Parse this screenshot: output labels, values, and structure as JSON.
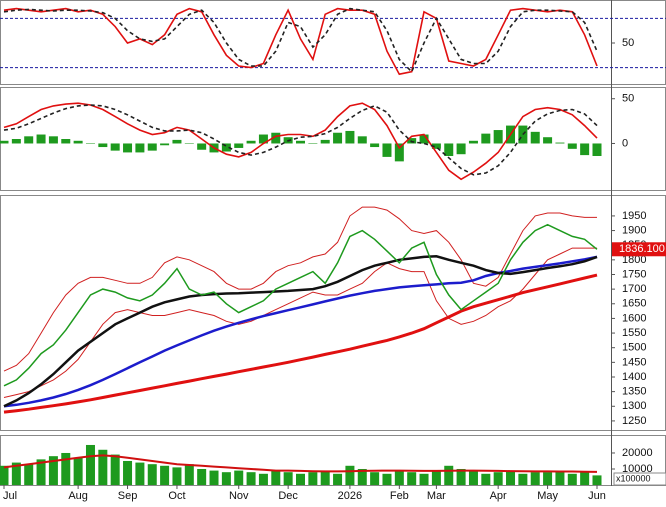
{
  "chart_data": [
    {
      "type": "line",
      "ylim": [
        0,
        100
      ],
      "yticks": [
        50
      ],
      "levels": [
        80,
        20
      ],
      "level_color": "#1a1aa0",
      "series": [
        {
          "color": "#e01010",
          "values": [
            90,
            92,
            90,
            88,
            90,
            92,
            88,
            90,
            85,
            70,
            50,
            55,
            48,
            60,
            85,
            92,
            88,
            60,
            35,
            22,
            20,
            25,
            60,
            90,
            55,
            30,
            85,
            92,
            90,
            90,
            85,
            40,
            12,
            15,
            88,
            80,
            28,
            25,
            22,
            30,
            60,
            90,
            92,
            90,
            88,
            90,
            88,
            60,
            22
          ]
        },
        {
          "color": "#222222",
          "dash": true,
          "values": [
            88,
            90,
            91,
            90,
            89,
            90,
            90,
            89,
            87,
            80,
            65,
            55,
            52,
            55,
            70,
            85,
            90,
            75,
            50,
            30,
            22,
            22,
            40,
            75,
            70,
            45,
            60,
            85,
            92,
            90,
            88,
            65,
            30,
            15,
            50,
            80,
            55,
            30,
            25,
            25,
            40,
            70,
            88,
            90,
            90,
            89,
            88,
            75,
            40
          ]
        }
      ]
    },
    {
      "type": "line",
      "ylim": [
        -52,
        62
      ],
      "yticks": [
        0,
        50
      ],
      "series": [
        {
          "kind": "bar",
          "color": "#1e9a1e",
          "values": [
            3,
            5,
            8,
            10,
            8,
            5,
            3,
            0,
            -4,
            -8,
            -10,
            -10,
            -8,
            -2,
            4,
            0,
            -7,
            -10,
            -9,
            -5,
            3,
            10,
            12,
            7,
            3,
            0,
            4,
            12,
            14,
            8,
            -4,
            -15,
            -20,
            6,
            10,
            -6,
            -14,
            -12,
            3,
            11,
            15,
            20,
            20,
            13,
            7,
            1,
            -6,
            -13,
            -14
          ]
        },
        {
          "color": "#e01010",
          "values": [
            18,
            22,
            30,
            38,
            42,
            44,
            45,
            43,
            38,
            30,
            22,
            15,
            10,
            12,
            18,
            15,
            5,
            -5,
            -12,
            -15,
            -10,
            0,
            8,
            10,
            10,
            8,
            15,
            30,
            42,
            45,
            38,
            20,
            -5,
            8,
            10,
            -10,
            -30,
            -40,
            -32,
            -22,
            -10,
            10,
            30,
            38,
            40,
            38,
            32,
            20,
            6
          ]
        },
        {
          "color": "#222222",
          "dash": true,
          "values": [
            15,
            17,
            22,
            28,
            34,
            39,
            42,
            43,
            42,
            38,
            32,
            25,
            18,
            14,
            14,
            15,
            12,
            5,
            -3,
            -10,
            -13,
            -10,
            -4,
            3,
            7,
            8,
            11,
            18,
            28,
            37,
            42,
            35,
            15,
            2,
            0,
            -4,
            -16,
            -28,
            -35,
            -33,
            -25,
            -10,
            10,
            25,
            33,
            37,
            38,
            33,
            20
          ]
        }
      ]
    },
    {
      "type": "line",
      "ylim": [
        1219,
        2018
      ],
      "yticks": [
        1250,
        1300,
        1350,
        1400,
        1450,
        1500,
        1550,
        1600,
        1650,
        1700,
        1750,
        1800,
        1850,
        1900,
        1950
      ],
      "last_label": "1836.100",
      "last_color": "#e01010",
      "series": [
        {
          "color": "#d02020",
          "width": 1,
          "values": [
            1420,
            1440,
            1480,
            1550,
            1620,
            1680,
            1720,
            1740,
            1740,
            1730,
            1720,
            1720,
            1740,
            1790,
            1810,
            1800,
            1780,
            1760,
            1720,
            1700,
            1700,
            1720,
            1760,
            1780,
            1790,
            1810,
            1820,
            1860,
            1950,
            1980,
            1980,
            1970,
            1940,
            1900,
            1890,
            1900,
            1860,
            1800,
            1720,
            1710,
            1740,
            1820,
            1900,
            1950,
            1960,
            1960,
            1950,
            1945,
            1945
          ]
        },
        {
          "color": "#d02020",
          "width": 1,
          "values": [
            1330,
            1340,
            1350,
            1370,
            1390,
            1420,
            1460,
            1520,
            1580,
            1620,
            1630,
            1620,
            1610,
            1610,
            1620,
            1630,
            1620,
            1610,
            1590,
            1580,
            1590,
            1610,
            1630,
            1650,
            1670,
            1690,
            1680,
            1680,
            1700,
            1720,
            1760,
            1790,
            1770,
            1760,
            1760,
            1660,
            1600,
            1580,
            1590,
            1610,
            1640,
            1660,
            1700,
            1750,
            1800,
            1820,
            1840,
            1840,
            1840
          ]
        },
        {
          "color": "#e01010",
          "width": 3,
          "values": [
            1280,
            1285,
            1290,
            1296,
            1302,
            1308,
            1315,
            1322,
            1330,
            1338,
            1346,
            1354,
            1362,
            1370,
            1378,
            1386,
            1394,
            1402,
            1410,
            1418,
            1426,
            1434,
            1442,
            1450,
            1459,
            1468,
            1477,
            1486,
            1495,
            1505,
            1515,
            1525,
            1537,
            1550,
            1565,
            1585,
            1605,
            1625,
            1640,
            1652,
            1664,
            1676,
            1688,
            1698,
            1708,
            1718,
            1728,
            1738,
            1748
          ]
        },
        {
          "color": "#1c1ccc",
          "width": 2.5,
          "values": [
            1300,
            1305,
            1312,
            1320,
            1330,
            1342,
            1356,
            1372,
            1390,
            1410,
            1430,
            1450,
            1470,
            1490,
            1508,
            1525,
            1542,
            1558,
            1572,
            1585,
            1597,
            1608,
            1618,
            1628,
            1638,
            1648,
            1658,
            1668,
            1678,
            1686,
            1694,
            1700,
            1706,
            1710,
            1713,
            1716,
            1720,
            1722,
            1730,
            1745,
            1755,
            1762,
            1770,
            1776,
            1782,
            1788,
            1795,
            1802,
            1810
          ]
        },
        {
          "color": "#111111",
          "width": 2.5,
          "values": [
            1300,
            1320,
            1345,
            1375,
            1410,
            1450,
            1490,
            1520,
            1550,
            1580,
            1600,
            1620,
            1640,
            1655,
            1665,
            1675,
            1680,
            1683,
            1685,
            1686,
            1688,
            1690,
            1692,
            1694,
            1697,
            1700,
            1710,
            1725,
            1745,
            1765,
            1780,
            1790,
            1800,
            1805,
            1810,
            1812,
            1800,
            1790,
            1780,
            1765,
            1755,
            1752,
            1758,
            1765,
            1772,
            1778,
            1785,
            1795,
            1810
          ]
        },
        {
          "color": "#1e9a1e",
          "width": 1.5,
          "values": [
            1370,
            1390,
            1430,
            1480,
            1510,
            1560,
            1620,
            1680,
            1700,
            1690,
            1670,
            1660,
            1680,
            1720,
            1770,
            1700,
            1680,
            1690,
            1650,
            1620,
            1640,
            1660,
            1700,
            1720,
            1740,
            1760,
            1720,
            1790,
            1880,
            1900,
            1870,
            1830,
            1790,
            1840,
            1860,
            1750,
            1680,
            1630,
            1660,
            1690,
            1720,
            1800,
            1860,
            1900,
            1920,
            1900,
            1880,
            1870,
            1836.1
          ]
        }
      ]
    },
    {
      "type": "bar",
      "ylim": [
        0,
        30600
      ],
      "yticks": [
        10000,
        20000
      ],
      "unit_label": "x100000",
      "categories": [
        "Jul",
        null,
        null,
        null,
        null,
        null,
        "Aug",
        null,
        null,
        null,
        "Sep",
        null,
        null,
        null,
        "Oct",
        null,
        null,
        null,
        null,
        "Nov",
        null,
        null,
        null,
        "Dec",
        null,
        null,
        null,
        null,
        "2026",
        null,
        null,
        null,
        "Feb",
        null,
        null,
        "Mar",
        null,
        null,
        null,
        null,
        "Apr",
        null,
        null,
        null,
        "May",
        null,
        null,
        null,
        "Jun"
      ],
      "series": [
        {
          "kind": "bar",
          "color": "#1e9a1e",
          "values": [
            12000,
            14000,
            13000,
            16000,
            18000,
            20000,
            17000,
            25000,
            22000,
            19000,
            15000,
            14000,
            13000,
            12000,
            11000,
            13000,
            10000,
            9000,
            8000,
            9000,
            8000,
            7000,
            9000,
            8000,
            7000,
            8000,
            9000,
            7000,
            12000,
            10000,
            8000,
            7000,
            9000,
            8000,
            7000,
            9000,
            12000,
            10000,
            9000,
            7000,
            8000,
            9000,
            7000,
            8000,
            8000,
            9000,
            7000,
            8000,
            6000
          ]
        },
        {
          "color": "#d01010",
          "width": 2,
          "values": [
            11000,
            12000,
            13000,
            14000,
            15000,
            16000,
            17000,
            18000,
            18500,
            18000,
            17000,
            16000,
            15000,
            14000,
            13000,
            12500,
            12000,
            11500,
            11000,
            10500,
            10000,
            9500,
            9000,
            9000,
            8800,
            8600,
            8500,
            8500,
            8600,
            8800,
            8900,
            9000,
            9000,
            8900,
            8800,
            8800,
            8900,
            9000,
            9000,
            8900,
            8800,
            8700,
            8600,
            8500,
            8500,
            8400,
            8400,
            8300,
            8200
          ]
        }
      ]
    }
  ]
}
